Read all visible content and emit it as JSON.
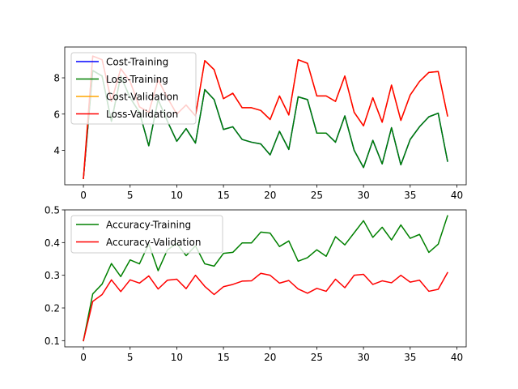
{
  "chart_data": [
    {
      "type": "line",
      "title": "",
      "xlabel": "",
      "ylabel": "",
      "xlim": [
        -2,
        41
      ],
      "ylim": [
        2.1,
        9.7
      ],
      "xticks": [
        0,
        5,
        10,
        15,
        20,
        25,
        30,
        35,
        40
      ],
      "yticks": [
        4,
        6,
        8
      ],
      "legend_position": "upper-left",
      "series": [
        {
          "name": "Cost-Training",
          "color": "#0000ff",
          "values": [
            2.45,
            8.4,
            8.1,
            5.6,
            8.1,
            6.9,
            6.1,
            4.25,
            6.8,
            5.6,
            4.5,
            5.2,
            4.4,
            7.35,
            6.8,
            5.15,
            5.3,
            4.6,
            4.45,
            4.35,
            3.75,
            5.05,
            4.05,
            6.95,
            6.8,
            4.95,
            4.95,
            4.45,
            5.9,
            4.0,
            3.05,
            4.55,
            3.25,
            5.25,
            3.2,
            4.6,
            5.3,
            5.85,
            6.05,
            3.4
          ]
        },
        {
          "name": "Loss-Training",
          "color": "#008000",
          "values": [
            2.45,
            8.4,
            8.1,
            5.6,
            8.1,
            6.9,
            6.1,
            4.25,
            6.8,
            5.6,
            4.5,
            5.2,
            4.4,
            7.35,
            6.8,
            5.15,
            5.3,
            4.6,
            4.45,
            4.35,
            3.75,
            5.05,
            4.05,
            6.95,
            6.8,
            4.95,
            4.95,
            4.45,
            5.9,
            4.0,
            3.05,
            4.55,
            3.25,
            5.25,
            3.2,
            4.6,
            5.3,
            5.85,
            6.05,
            3.4
          ]
        },
        {
          "name": "Cost-Validation",
          "color": "#ffa500",
          "values": [
            2.45,
            9.2,
            9.0,
            6.7,
            8.5,
            7.8,
            6.4,
            6.1,
            7.9,
            6.9,
            6.0,
            6.5,
            5.9,
            8.95,
            8.45,
            6.85,
            7.15,
            6.35,
            6.35,
            6.2,
            5.7,
            7.0,
            5.95,
            9.0,
            8.8,
            7.0,
            7.0,
            6.7,
            8.1,
            6.1,
            5.35,
            6.9,
            5.55,
            7.6,
            5.65,
            7.05,
            7.8,
            8.3,
            8.35,
            5.9
          ]
        },
        {
          "name": "Loss-Validation",
          "color": "#ff0000",
          "values": [
            2.45,
            9.2,
            9.0,
            6.7,
            8.5,
            7.8,
            6.4,
            6.1,
            7.9,
            6.9,
            6.0,
            6.5,
            5.9,
            8.95,
            8.45,
            6.85,
            7.15,
            6.35,
            6.35,
            6.2,
            5.7,
            7.0,
            5.95,
            9.0,
            8.8,
            7.0,
            7.0,
            6.7,
            8.1,
            6.1,
            5.35,
            6.9,
            5.55,
            7.6,
            5.65,
            7.05,
            7.8,
            8.3,
            8.35,
            5.9
          ]
        }
      ]
    },
    {
      "type": "line",
      "title": "",
      "xlabel": "",
      "ylabel": "",
      "xlim": [
        -2,
        41
      ],
      "ylim": [
        0.081,
        0.5
      ],
      "xticks": [
        0,
        5,
        10,
        15,
        20,
        25,
        30,
        35,
        40
      ],
      "yticks": [
        0.1,
        0.2,
        0.3,
        0.4,
        0.5
      ],
      "legend_position": "upper-left",
      "series": [
        {
          "name": "Accuracy-Training",
          "color": "#008000",
          "values": [
            0.1,
            0.243,
            0.273,
            0.336,
            0.296,
            0.347,
            0.335,
            0.396,
            0.314,
            0.378,
            0.397,
            0.36,
            0.39,
            0.335,
            0.328,
            0.367,
            0.37,
            0.399,
            0.399,
            0.432,
            0.429,
            0.388,
            0.405,
            0.343,
            0.354,
            0.378,
            0.358,
            0.418,
            0.393,
            0.43,
            0.467,
            0.416,
            0.447,
            0.408,
            0.454,
            0.413,
            0.425,
            0.37,
            0.395,
            0.482
          ]
        },
        {
          "name": "Accuracy-Validation",
          "color": "#ff0000",
          "values": [
            0.1,
            0.22,
            0.241,
            0.286,
            0.25,
            0.286,
            0.276,
            0.298,
            0.258,
            0.285,
            0.288,
            0.259,
            0.3,
            0.266,
            0.241,
            0.265,
            0.272,
            0.282,
            0.283,
            0.306,
            0.3,
            0.276,
            0.284,
            0.258,
            0.245,
            0.26,
            0.251,
            0.288,
            0.262,
            0.3,
            0.303,
            0.272,
            0.283,
            0.277,
            0.3,
            0.279,
            0.285,
            0.251,
            0.257,
            0.308
          ]
        }
      ]
    }
  ]
}
